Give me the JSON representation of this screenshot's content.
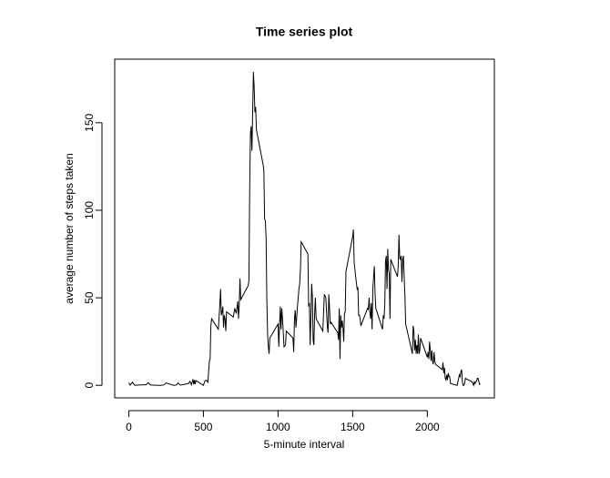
{
  "chart_data": {
    "type": "line",
    "title": "Time series plot",
    "x_label": "5-minute interval",
    "y_label": "average number of steps taken",
    "color": "#000000",
    "x": [
      0,
      10,
      25,
      40,
      55,
      100,
      115,
      125,
      130,
      145,
      200,
      215,
      225,
      235,
      250,
      300,
      320,
      330,
      345,
      400,
      410,
      420,
      430,
      435,
      440,
      445,
      450,
      500,
      510,
      520,
      530,
      540,
      545,
      550,
      555,
      600,
      610,
      615,
      620,
      625,
      630,
      635,
      640,
      645,
      650,
      655,
      700,
      710,
      720,
      730,
      735,
      740,
      745,
      750,
      800,
      805,
      810,
      815,
      820,
      825,
      830,
      835,
      840,
      845,
      850,
      855,
      900,
      905,
      910,
      915,
      920,
      925,
      930,
      935,
      940,
      945,
      1000,
      1005,
      1010,
      1015,
      1020,
      1025,
      1030,
      1040,
      1050,
      1055,
      1100,
      1105,
      1110,
      1115,
      1120,
      1130,
      1140,
      1145,
      1150,
      1155,
      1200,
      1205,
      1210,
      1215,
      1220,
      1225,
      1230,
      1235,
      1240,
      1245,
      1250,
      1255,
      1300,
      1310,
      1320,
      1325,
      1330,
      1335,
      1340,
      1345,
      1350,
      1355,
      1400,
      1405,
      1410,
      1415,
      1420,
      1425,
      1430,
      1435,
      1440,
      1445,
      1450,
      1455,
      1500,
      1505,
      1510,
      1520,
      1530,
      1535,
      1540,
      1545,
      1550,
      1555,
      1600,
      1605,
      1610,
      1615,
      1620,
      1625,
      1630,
      1635,
      1640,
      1645,
      1650,
      1655,
      1700,
      1705,
      1710,
      1715,
      1720,
      1725,
      1730,
      1735,
      1740,
      1745,
      1750,
      1755,
      1800,
      1805,
      1810,
      1815,
      1820,
      1825,
      1830,
      1835,
      1840,
      1845,
      1850,
      1855,
      1900,
      1905,
      1910,
      1915,
      1920,
      1925,
      1930,
      1935,
      1940,
      1945,
      1950,
      1955,
      2000,
      2005,
      2010,
      2015,
      2020,
      2025,
      2030,
      2035,
      2040,
      2045,
      2050,
      2055,
      2100,
      2105,
      2110,
      2115,
      2120,
      2125,
      2130,
      2135,
      2140,
      2145,
      2150,
      2155,
      2200,
      2205,
      2210,
      2215,
      2220,
      2225,
      2230,
      2235,
      2240,
      2245,
      2250,
      2255,
      2300,
      2305,
      2310,
      2315,
      2320,
      2325,
      2330,
      2335,
      2340,
      2345,
      2350,
      2355
    ],
    "values": [
      1.5,
      0.1,
      1.8,
      0,
      0.1,
      0.3,
      0.3,
      1.0,
      1.6,
      0.2,
      0,
      0,
      0.1,
      0.2,
      1.4,
      0,
      0.2,
      1.4,
      0.1,
      1.0,
      2.3,
      0.3,
      3.5,
      0.6,
      3.0,
      0.7,
      2.7,
      0,
      2.6,
      2.9,
      1.8,
      14,
      15,
      34,
      38,
      32,
      46,
      55,
      40,
      42,
      45,
      33,
      40,
      38,
      31,
      42,
      39,
      44,
      41,
      48,
      38,
      46,
      61,
      49,
      57,
      60,
      112,
      144,
      148,
      134,
      157,
      179,
      170,
      156,
      159,
      146,
      126,
      123,
      95,
      94,
      84,
      48,
      29,
      22,
      18,
      27,
      35,
      22,
      34,
      45,
      32,
      44,
      38,
      22,
      23,
      31,
      27,
      19,
      38,
      43,
      33,
      45,
      55,
      58,
      66,
      82,
      75,
      45,
      47,
      23,
      39,
      58,
      51,
      26,
      23,
      41,
      50,
      38,
      31,
      52,
      50,
      42,
      34,
      30,
      52,
      44,
      35,
      36,
      30,
      26,
      44,
      15,
      40,
      33,
      37,
      33,
      25,
      41,
      42,
      65,
      85,
      89,
      70,
      62,
      55,
      56,
      40,
      40,
      38,
      34,
      44,
      43,
      50,
      42,
      38,
      47,
      32,
      55,
      62,
      68,
      52,
      44,
      32,
      40,
      38,
      46,
      71,
      74,
      55,
      78,
      66,
      64,
      38,
      72,
      62,
      68,
      86,
      73,
      72,
      74,
      59,
      72,
      74,
      62,
      51,
      35,
      18,
      34,
      31,
      20,
      26,
      18,
      23,
      18,
      29,
      18,
      20,
      27,
      16,
      19,
      15,
      25,
      20,
      14,
      20,
      14,
      12,
      19,
      14,
      12,
      9,
      13,
      7,
      10,
      4,
      3,
      6,
      3,
      7,
      5,
      5,
      1,
      0,
      2,
      4,
      6,
      5,
      8,
      9,
      2,
      0,
      0,
      1,
      4,
      2,
      1,
      0,
      2,
      1,
      2,
      2.5,
      4,
      4,
      2,
      0.5,
      0.9
    ],
    "xlim": [
      -94.2,
      2449.2
    ],
    "ylim": [
      -7.17,
      186.3
    ],
    "xticks": [
      0,
      500,
      1000,
      1500,
      2000
    ],
    "yticks": [
      0,
      50,
      100,
      150
    ]
  }
}
